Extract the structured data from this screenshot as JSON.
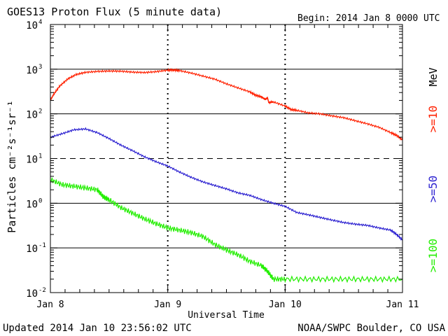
{
  "chart_data": {
    "type": "line",
    "title": "GOES13 Proton Flux (5 minute data)",
    "begin_label": "Begin: 2014 Jan 8 0000 UTC",
    "ylabel": "Particles cm⁻²s⁻¹sr⁻¹",
    "xlabel": "Universal Time",
    "y_scale": "log",
    "ylim": [
      0.01,
      10000
    ],
    "y_ticks": [
      {
        "base": "10",
        "exp": "4",
        "value": 10000
      },
      {
        "base": "10",
        "exp": "3",
        "value": 1000
      },
      {
        "base": "10",
        "exp": "2",
        "value": 100
      },
      {
        "base": "10",
        "exp": "1",
        "value": 10
      },
      {
        "base": "10",
        "exp": "0",
        "value": 1
      },
      {
        "base": "10",
        "exp": "-1",
        "value": 0.1
      },
      {
        "base": "10",
        "exp": "-2",
        "value": 0.01
      }
    ],
    "x_ticks": [
      {
        "label": "Jan 8",
        "day": 0
      },
      {
        "label": "Jan 9",
        "day": 1
      },
      {
        "label": "Jan 10",
        "day": 2
      },
      {
        "label": "Jan 11",
        "day": 3
      }
    ],
    "xlim": [
      0,
      3
    ],
    "grid": {
      "solid_levels": [
        1000,
        100,
        1,
        0.1
      ],
      "dashed_levels": [
        10
      ]
    },
    "series": [
      {
        "name": ">=10 MeV",
        "legend_label": ">=10",
        "color": "#ff2000",
        "points": [
          [
            0.0,
            200
          ],
          [
            0.03,
            280
          ],
          [
            0.08,
            420
          ],
          [
            0.15,
            610
          ],
          [
            0.22,
            760
          ],
          [
            0.3,
            850
          ],
          [
            0.4,
            890
          ],
          [
            0.5,
            910
          ],
          [
            0.6,
            900
          ],
          [
            0.7,
            860
          ],
          [
            0.8,
            840
          ],
          [
            0.9,
            880
          ],
          [
            1.0,
            950
          ],
          [
            1.05,
            960
          ],
          [
            1.1,
            930
          ],
          [
            1.2,
            820
          ],
          [
            1.3,
            700
          ],
          [
            1.4,
            600
          ],
          [
            1.5,
            470
          ],
          [
            1.6,
            380
          ],
          [
            1.7,
            310
          ],
          [
            1.75,
            260
          ],
          [
            1.8,
            240
          ],
          [
            1.83,
            210
          ],
          [
            1.85,
            230
          ],
          [
            1.86,
            180
          ],
          [
            1.9,
            185
          ],
          [
            2.0,
            150
          ],
          [
            2.05,
            125
          ],
          [
            2.1,
            120
          ],
          [
            2.2,
            105
          ],
          [
            2.3,
            100
          ],
          [
            2.4,
            90
          ],
          [
            2.5,
            82
          ],
          [
            2.6,
            70
          ],
          [
            2.7,
            60
          ],
          [
            2.8,
            50
          ],
          [
            2.9,
            38
          ],
          [
            2.95,
            33
          ],
          [
            3.0,
            26
          ]
        ]
      },
      {
        "name": ">=50 MeV",
        "legend_label": ">=50",
        "color": "#2a1fd0",
        "points": [
          [
            0.0,
            30
          ],
          [
            0.1,
            36
          ],
          [
            0.2,
            44
          ],
          [
            0.3,
            46
          ],
          [
            0.4,
            38
          ],
          [
            0.5,
            28
          ],
          [
            0.6,
            20
          ],
          [
            0.7,
            15
          ],
          [
            0.8,
            11
          ],
          [
            0.9,
            8.5
          ],
          [
            1.0,
            6.8
          ],
          [
            1.1,
            5.0
          ],
          [
            1.2,
            3.8
          ],
          [
            1.3,
            3.0
          ],
          [
            1.4,
            2.5
          ],
          [
            1.5,
            2.1
          ],
          [
            1.6,
            1.7
          ],
          [
            1.7,
            1.5
          ],
          [
            1.8,
            1.2
          ],
          [
            1.9,
            1.0
          ],
          [
            2.0,
            0.85
          ],
          [
            2.1,
            0.62
          ],
          [
            2.2,
            0.55
          ],
          [
            2.3,
            0.48
          ],
          [
            2.4,
            0.42
          ],
          [
            2.5,
            0.37
          ],
          [
            2.6,
            0.34
          ],
          [
            2.7,
            0.32
          ],
          [
            2.8,
            0.28
          ],
          [
            2.9,
            0.25
          ],
          [
            2.95,
            0.2
          ],
          [
            3.0,
            0.15
          ]
        ]
      },
      {
        "name": ">=100 MeV",
        "legend_label": ">=100",
        "color": "#22ee00",
        "points": [
          [
            0.0,
            3.4
          ],
          [
            0.1,
            2.6
          ],
          [
            0.2,
            2.4
          ],
          [
            0.3,
            2.2
          ],
          [
            0.4,
            2.0
          ],
          [
            0.45,
            1.4
          ],
          [
            0.5,
            1.2
          ],
          [
            0.6,
            0.8
          ],
          [
            0.7,
            0.6
          ],
          [
            0.8,
            0.45
          ],
          [
            0.9,
            0.35
          ],
          [
            1.0,
            0.28
          ],
          [
            1.1,
            0.25
          ],
          [
            1.2,
            0.22
          ],
          [
            1.3,
            0.18
          ],
          [
            1.4,
            0.12
          ],
          [
            1.5,
            0.09
          ],
          [
            1.6,
            0.07
          ],
          [
            1.7,
            0.05
          ],
          [
            1.8,
            0.04
          ],
          [
            1.85,
            0.03
          ],
          [
            1.9,
            0.02
          ],
          [
            2.0,
            0.02
          ],
          [
            2.2,
            0.02
          ],
          [
            2.4,
            0.02
          ],
          [
            2.6,
            0.02
          ],
          [
            2.8,
            0.02
          ],
          [
            3.0,
            0.02
          ]
        ]
      }
    ],
    "legend_unit": "MeV",
    "legend_position": "right"
  },
  "footer": {
    "updated": "Updated 2014 Jan 10 23:56:02 UTC",
    "source": "NOAA/SWPC Boulder, CO USA"
  }
}
